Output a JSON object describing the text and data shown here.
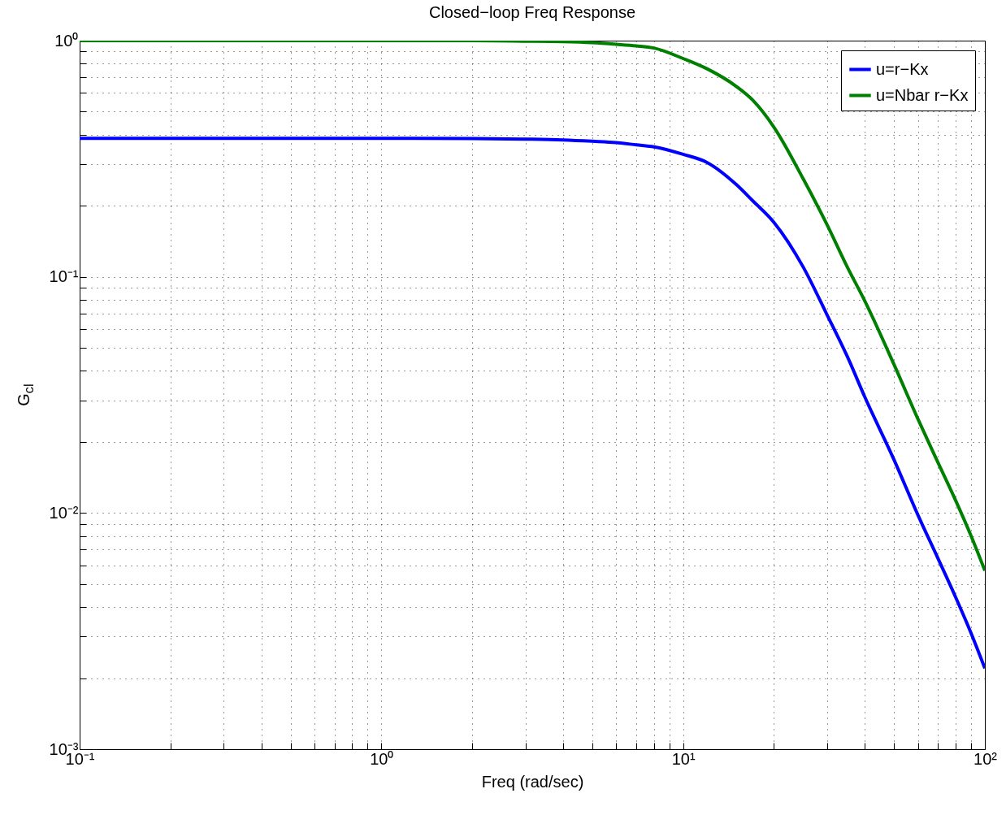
{
  "chart_data": {
    "type": "line",
    "title": "Closed−loop Freq Response",
    "xlabel": "Freq (rad/sec)",
    "ylabel": "G$_{cl}$",
    "x": [
      0.1,
      0.2,
      0.5,
      1,
      2,
      3,
      4,
      5,
      6,
      7,
      8,
      10,
      12,
      15,
      17,
      20,
      25,
      30,
      35,
      40,
      50,
      60,
      70,
      80,
      90,
      100
    ],
    "series": [
      {
        "name": "u=r−Kx",
        "color": "#0000ff",
        "values": [
          0.386,
          0.386,
          0.386,
          0.386,
          0.385,
          0.383,
          0.38,
          0.375,
          0.37,
          0.362,
          0.355,
          0.33,
          0.305,
          0.246,
          0.21,
          0.17,
          0.11,
          0.069,
          0.046,
          0.031,
          0.0168,
          0.0098,
          0.0064,
          0.0044,
          0.0031,
          0.0022
        ]
      },
      {
        "name": "u=Nbar r−Kx",
        "color": "#008000",
        "values": [
          1.0,
          1.0,
          1.0,
          1.0,
          1.0,
          0.995,
          0.99,
          0.98,
          0.965,
          0.95,
          0.93,
          0.84,
          0.76,
          0.64,
          0.56,
          0.43,
          0.26,
          0.166,
          0.11,
          0.079,
          0.0425,
          0.025,
          0.0163,
          0.0113,
          0.008,
          0.0057
        ]
      }
    ],
    "xlim": [
      0.1,
      100
    ],
    "ylim": [
      0.001,
      1
    ],
    "xticks": [
      {
        "value": 0.1,
        "label": "10⁻¹"
      },
      {
        "value": 0.2,
        "label": null
      },
      {
        "value": 0.3,
        "label": null
      },
      {
        "value": 0.4,
        "label": null
      },
      {
        "value": 0.5,
        "label": null
      },
      {
        "value": 0.6,
        "label": null
      },
      {
        "value": 0.7,
        "label": null
      },
      {
        "value": 0.8,
        "label": null
      },
      {
        "value": 0.9,
        "label": null
      },
      {
        "value": 1,
        "label": "10⁰"
      },
      {
        "value": 2,
        "label": null
      },
      {
        "value": 3,
        "label": null
      },
      {
        "value": 4,
        "label": null
      },
      {
        "value": 5,
        "label": null
      },
      {
        "value": 6,
        "label": null
      },
      {
        "value": 7,
        "label": null
      },
      {
        "value": 8,
        "label": null
      },
      {
        "value": 9,
        "label": null
      },
      {
        "value": 10,
        "label": "10¹"
      },
      {
        "value": 20,
        "label": null
      },
      {
        "value": 30,
        "label": null
      },
      {
        "value": 40,
        "label": null
      },
      {
        "value": 50,
        "label": null
      },
      {
        "value": 60,
        "label": null
      },
      {
        "value": 70,
        "label": null
      },
      {
        "value": 80,
        "label": null
      },
      {
        "value": 90,
        "label": null
      },
      {
        "value": 100,
        "label": "10²"
      }
    ],
    "yticks": [
      {
        "value": 0.001,
        "label": "10⁻³"
      },
      {
        "value": 0.002,
        "label": null
      },
      {
        "value": 0.003,
        "label": null
      },
      {
        "value": 0.004,
        "label": null
      },
      {
        "value": 0.005,
        "label": null
      },
      {
        "value": 0.006,
        "label": null
      },
      {
        "value": 0.007,
        "label": null
      },
      {
        "value": 0.008,
        "label": null
      },
      {
        "value": 0.009,
        "label": null
      },
      {
        "value": 0.01,
        "label": "10⁻²"
      },
      {
        "value": 0.02,
        "label": null
      },
      {
        "value": 0.03,
        "label": null
      },
      {
        "value": 0.04,
        "label": null
      },
      {
        "value": 0.05,
        "label": null
      },
      {
        "value": 0.06,
        "label": null
      },
      {
        "value": 0.07,
        "label": null
      },
      {
        "value": 0.08,
        "label": null
      },
      {
        "value": 0.09,
        "label": null
      },
      {
        "value": 0.1,
        "label": "10⁻¹"
      },
      {
        "value": 0.2,
        "label": null
      },
      {
        "value": 0.3,
        "label": null
      },
      {
        "value": 0.4,
        "label": null
      },
      {
        "value": 0.5,
        "label": null
      },
      {
        "value": 0.6,
        "label": null
      },
      {
        "value": 0.7,
        "label": null
      },
      {
        "value": 0.8,
        "label": null
      },
      {
        "value": 0.9,
        "label": null
      },
      {
        "value": 1,
        "label": "10⁰"
      }
    ],
    "log": "xy",
    "grid": true,
    "legend": "top right"
  }
}
